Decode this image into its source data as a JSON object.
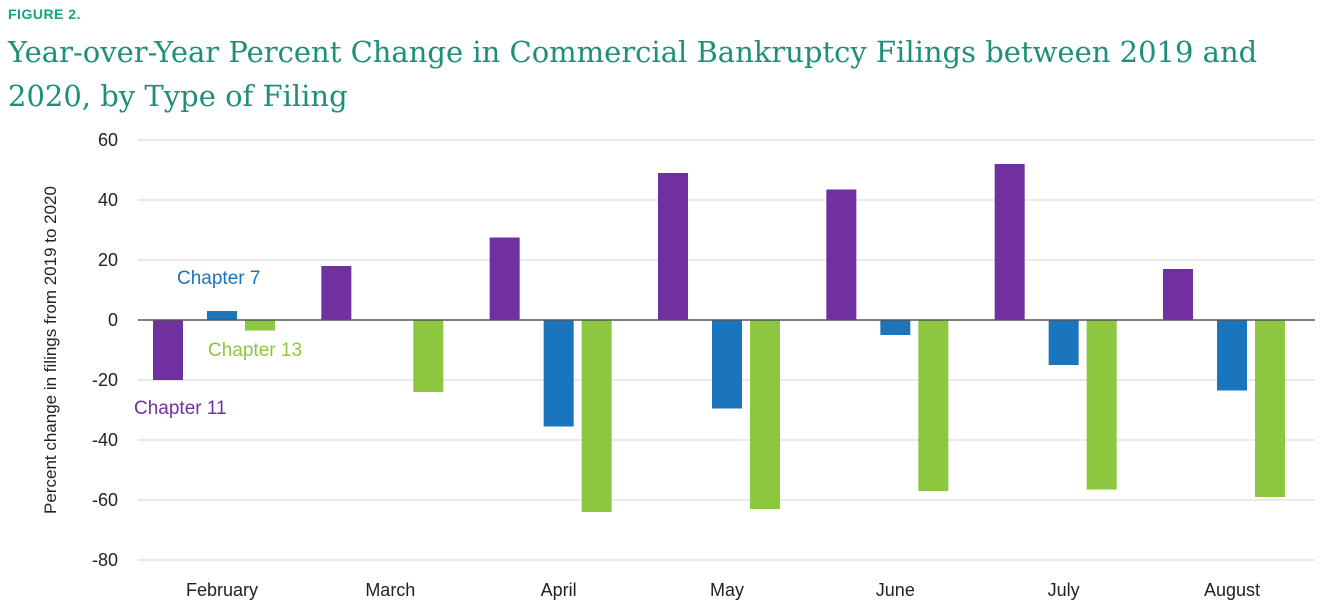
{
  "figure_label": "FIGURE 2.",
  "title": "Year-over-Year Percent Change in Commercial Bankruptcy Filings between 2019 and 2020, by Type of Filing",
  "colors": {
    "figure_label": "#13a37f",
    "title": "#1f8f7a",
    "chapter_11": "#7030a0",
    "chapter_7": "#1b75bc",
    "chapter_13": "#8dc63f",
    "gridline": "#d6d6d6"
  },
  "chart_data": {
    "type": "bar",
    "ylabel": "Percent change in filings from 2019 to 2020",
    "xlabel": "",
    "ylim": [
      -80,
      60
    ],
    "yticks": [
      60,
      40,
      20,
      0,
      -20,
      -40,
      -60,
      -80
    ],
    "grid": true,
    "categories": [
      "February",
      "March",
      "April",
      "May",
      "June",
      "July",
      "August"
    ],
    "series": [
      {
        "name": "Chapter 11",
        "values": [
          -20,
          18,
          27.5,
          49,
          43.5,
          52,
          17
        ]
      },
      {
        "name": "Chapter 7",
        "values": [
          3,
          0,
          -35.5,
          -29.5,
          -5,
          -15,
          -23.5
        ]
      },
      {
        "name": "Chapter 13",
        "values": [
          -3.5,
          -24,
          -64,
          -63,
          -57,
          -56.5,
          -59
        ]
      }
    ]
  }
}
